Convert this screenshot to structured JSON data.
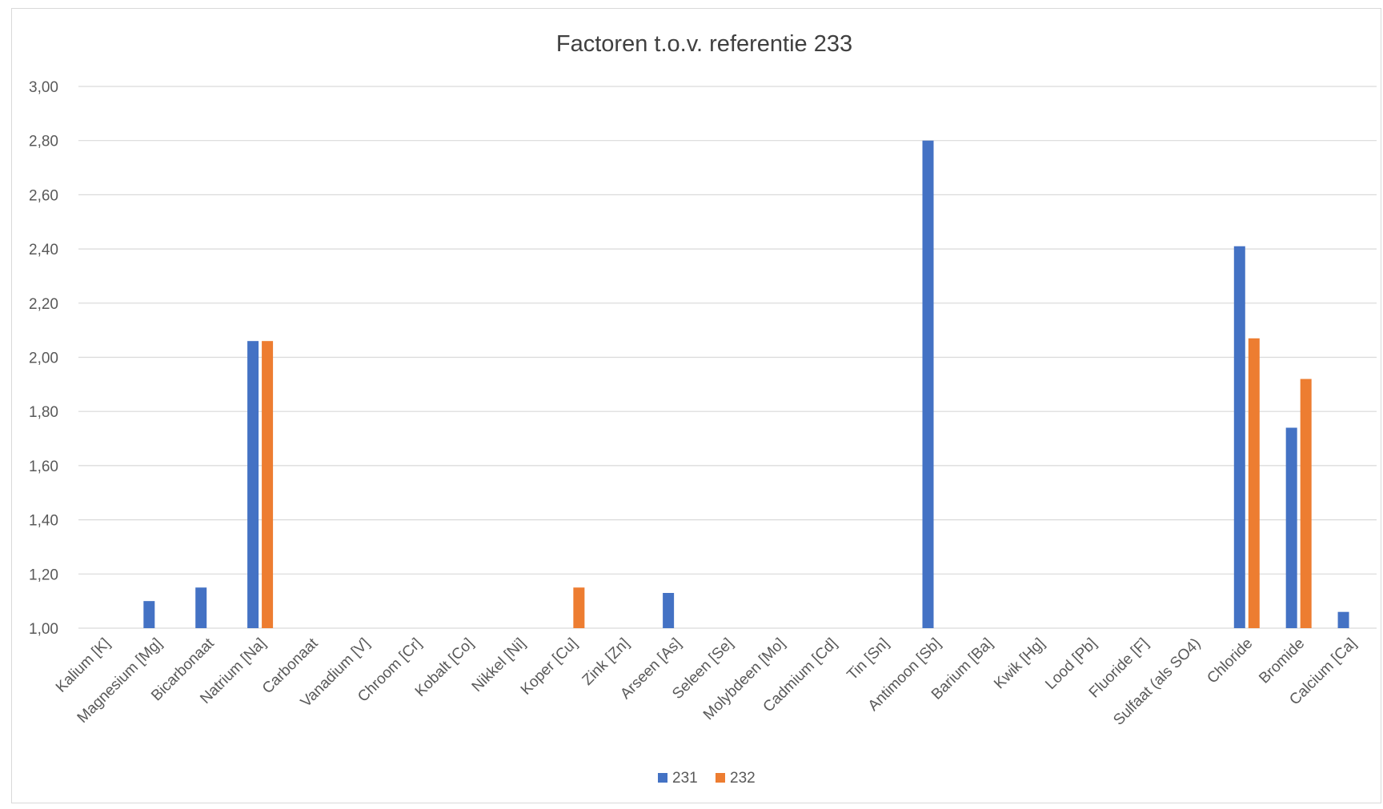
{
  "chart_data": {
    "type": "bar",
    "title": "Factoren t.o.v. referentie 233",
    "xlabel": "",
    "ylabel": "",
    "ylim": [
      1.0,
      3.0
    ],
    "y_ticks": [
      "1,00",
      "1,20",
      "1,40",
      "1,60",
      "1,80",
      "2,00",
      "2,20",
      "2,40",
      "2,60",
      "2,80",
      "3,00"
    ],
    "y_tick_values": [
      1.0,
      1.2,
      1.4,
      1.6,
      1.8,
      2.0,
      2.2,
      2.4,
      2.6,
      2.8,
      3.0
    ],
    "grid": true,
    "legend_position": "bottom",
    "categories": [
      "Kalium [K]",
      "Magnesium [Mg]",
      "Bicarbonaat",
      "Natrium [Na]",
      "Carbonaat",
      "Vanadium [V]",
      "Chroom [Cr]",
      "Kobalt [Co]",
      "Nikkel [Ni]",
      "Koper [Cu]",
      "Zink [Zn]",
      "Arseen [As]",
      "Seleen [Se]",
      "Molybdeen [Mo]",
      "Cadmium [Cd]",
      "Tin [Sn]",
      "Antimoon [Sb]",
      "Barium [Ba]",
      "Kwik [Hg]",
      "Lood [Pb]",
      "Fluoride [F]",
      "Sulfaat (als SO4)",
      "Chloride",
      "Bromide",
      "Calcium [Ca]"
    ],
    "series": [
      {
        "name": "231",
        "color": "#4472c4",
        "values": [
          null,
          1.1,
          1.15,
          2.06,
          null,
          null,
          null,
          null,
          null,
          null,
          null,
          1.13,
          null,
          null,
          null,
          null,
          2.8,
          null,
          null,
          null,
          null,
          null,
          2.41,
          1.74,
          1.06
        ]
      },
      {
        "name": "232",
        "color": "#ed7d31",
        "values": [
          null,
          null,
          null,
          2.06,
          null,
          null,
          null,
          null,
          null,
          1.15,
          null,
          null,
          null,
          null,
          null,
          null,
          null,
          null,
          null,
          null,
          null,
          null,
          2.07,
          1.92,
          null
        ]
      }
    ]
  }
}
